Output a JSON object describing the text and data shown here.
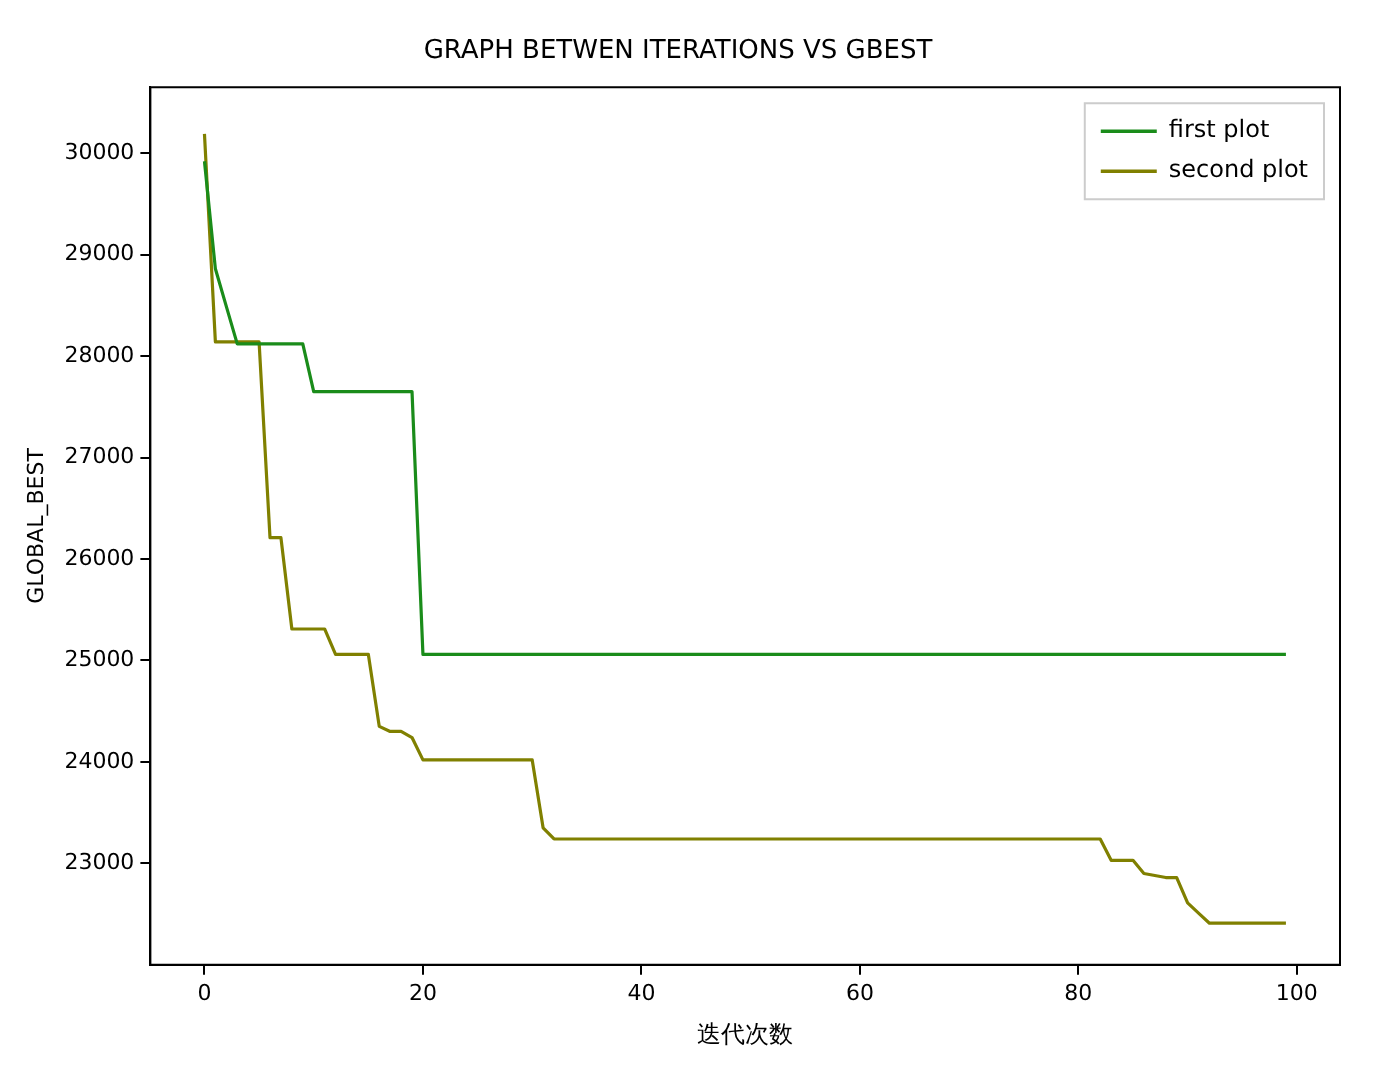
{
  "chart_data": {
    "type": "line",
    "title": "GRAPH BETWEN ITERATIONS VS GBEST",
    "xlabel": "迭代次数",
    "ylabel": "GLOBAL_BEST",
    "x": [
      0,
      1,
      2,
      3,
      4,
      5,
      6,
      7,
      8,
      9,
      10,
      11,
      12,
      13,
      14,
      15,
      16,
      17,
      18,
      19,
      20,
      21,
      22,
      23,
      24,
      25,
      26,
      27,
      28,
      29,
      30,
      31,
      32,
      33,
      34,
      35,
      36,
      37,
      38,
      39,
      40,
      41,
      42,
      43,
      44,
      45,
      46,
      47,
      48,
      49,
      50,
      51,
      52,
      53,
      54,
      55,
      56,
      57,
      58,
      59,
      60,
      61,
      62,
      63,
      64,
      65,
      66,
      67,
      68,
      69,
      70,
      71,
      72,
      73,
      74,
      75,
      76,
      77,
      78,
      79,
      80,
      81,
      82,
      83,
      84,
      85,
      86,
      87,
      88,
      89,
      90,
      91,
      92,
      93,
      94,
      95,
      96,
      97,
      98,
      99
    ],
    "series": [
      {
        "name": "first plot",
        "color": "#1a8c1a",
        "values": [
          29920,
          28860,
          28490,
          28120,
          28120,
          28120,
          28120,
          28120,
          28120,
          28120,
          27650,
          27650,
          27650,
          27650,
          27650,
          27650,
          27650,
          27650,
          27650,
          27650,
          25060,
          25060,
          25060,
          25060,
          25060,
          25060,
          25060,
          25060,
          25060,
          25060,
          25060,
          25060,
          25060,
          25060,
          25060,
          25060,
          25060,
          25060,
          25060,
          25060,
          25060,
          25060,
          25060,
          25060,
          25060,
          25060,
          25060,
          25060,
          25060,
          25060,
          25060,
          25060,
          25060,
          25060,
          25060,
          25060,
          25060,
          25060,
          25060,
          25060,
          25060,
          25060,
          25060,
          25060,
          25060,
          25060,
          25060,
          25060,
          25060,
          25060,
          25060,
          25060,
          25060,
          25060,
          25060,
          25060,
          25060,
          25060,
          25060,
          25060,
          25060,
          25060,
          25060,
          25060,
          25060,
          25060,
          25060,
          25060,
          25060,
          25060,
          25060,
          25060,
          25060,
          25060,
          25060,
          25060,
          25060,
          25060,
          25060,
          25060
        ]
      },
      {
        "name": "second plot",
        "color": "#808000",
        "values": [
          30190,
          28140,
          28140,
          28140,
          28140,
          28140,
          26210,
          26210,
          25310,
          25310,
          25310,
          25310,
          25060,
          25060,
          25060,
          25060,
          24350,
          24300,
          24300,
          24240,
          24020,
          24020,
          24020,
          24020,
          24020,
          24020,
          24020,
          24020,
          24020,
          24020,
          24020,
          23350,
          23240,
          23240,
          23240,
          23240,
          23240,
          23240,
          23240,
          23240,
          23240,
          23240,
          23240,
          23240,
          23240,
          23240,
          23240,
          23240,
          23240,
          23240,
          23240,
          23240,
          23240,
          23240,
          23240,
          23240,
          23240,
          23240,
          23240,
          23240,
          23240,
          23240,
          23240,
          23240,
          23240,
          23240,
          23240,
          23240,
          23240,
          23240,
          23240,
          23240,
          23240,
          23240,
          23240,
          23240,
          23240,
          23240,
          23240,
          23240,
          23240,
          23240,
          23240,
          23030,
          23030,
          23030,
          22900,
          22880,
          22860,
          22860,
          22610,
          22510,
          22410,
          22410,
          22410,
          22410,
          22410,
          22410,
          22410,
          22410
        ]
      }
    ],
    "xlim": [
      -4.95,
      103.95
    ],
    "xticks": [
      0,
      20,
      40,
      60,
      80,
      100
    ],
    "ylim": [
      22000,
      30650
    ],
    "yticks": [
      23000,
      24000,
      25000,
      26000,
      27000,
      28000,
      29000,
      30000
    ],
    "grid": false,
    "legend": "top right",
    "marker": "none",
    "line_style": "solid"
  }
}
